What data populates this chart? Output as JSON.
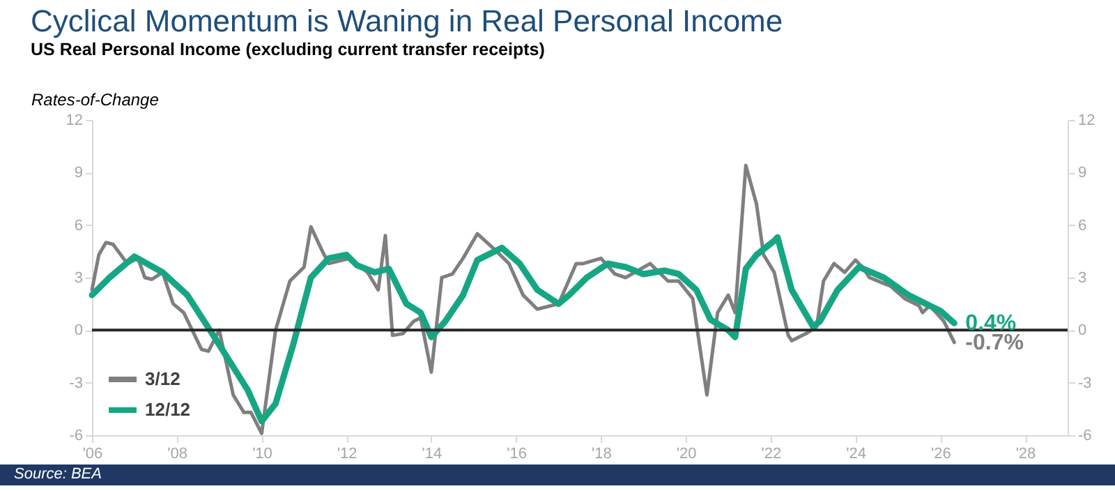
{
  "chart_data": {
    "type": "line",
    "title": "Cyclical Momentum is Waning in Real Personal Income",
    "subtitle": "US Real Personal Income (excluding current transfer receipts)",
    "ylabel": "Rates-of-Change",
    "xlim": [
      "2006-01",
      "2029-01"
    ],
    "xticks": [
      {
        "value": "2006",
        "label": "'06"
      },
      {
        "value": "2008",
        "label": "'08"
      },
      {
        "value": "2010",
        "label": "'10"
      },
      {
        "value": "2012",
        "label": "'12"
      },
      {
        "value": "2014",
        "label": "'14"
      },
      {
        "value": "2016",
        "label": "'16"
      },
      {
        "value": "2018",
        "label": "'18"
      },
      {
        "value": "2020",
        "label": "'20"
      },
      {
        "value": "2022",
        "label": "'22"
      },
      {
        "value": "2024",
        "label": "'24"
      },
      {
        "value": "2026",
        "label": "'26"
      },
      {
        "value": "2028",
        "label": "'28"
      }
    ],
    "ylim": [
      -6,
      12
    ],
    "yticks": [
      -6,
      -3,
      0,
      3,
      6,
      9,
      12
    ],
    "y2lim": [
      -6,
      12
    ],
    "y2ticks": [
      -6,
      -3,
      0,
      3,
      6,
      9,
      12
    ],
    "grid": false,
    "legend": "bottom left",
    "ref_lines": [
      {
        "axis": "y",
        "value": 0,
        "color": "#262626"
      }
    ],
    "annotations": [
      "Source: BEA",
      {
        "text": "0.4%",
        "x": "2026-05",
        "y": 0.4
      },
      {
        "text": "-0.7%",
        "x": "2026-05",
        "y": -0.7
      }
    ],
    "series": [
      {
        "name": "3/12",
        "color": "#7f7f7f",
        "x": [
          "2006-01",
          "2006-03",
          "2006-05",
          "2006-07",
          "2006-11",
          "2007-02",
          "2007-04",
          "2007-06",
          "2007-09",
          "2007-12",
          "2008-03",
          "2008-08",
          "2008-10",
          "2009-01",
          "2009-05",
          "2009-08",
          "2009-10",
          "2010-01",
          "2010-05",
          "2010-09",
          "2011-01",
          "2011-03",
          "2011-06",
          "2011-08",
          "2012-02",
          "2012-07",
          "2012-10",
          "2012-12",
          "2013-02",
          "2013-05",
          "2013-08",
          "2013-10",
          "2014-01",
          "2014-04",
          "2014-07",
          "2014-10",
          "2015-02",
          "2015-07",
          "2015-11",
          "2016-03",
          "2016-07",
          "2017-01",
          "2017-06",
          "2017-08",
          "2018-01",
          "2018-05",
          "2018-08",
          "2019-03",
          "2019-08",
          "2019-11",
          "2020-03",
          "2020-07",
          "2020-10",
          "2021-01",
          "2021-03",
          "2021-06",
          "2021-09",
          "2021-11",
          "2022-02",
          "2022-06",
          "2022-07",
          "2022-11",
          "2023-02",
          "2023-04",
          "2023-07",
          "2023-10",
          "2024-01",
          "2024-03",
          "2024-05",
          "2024-11",
          "2025-03",
          "2025-07",
          "2025-08",
          "2025-10",
          "2026-02",
          "2026-05"
        ],
        "values": [
          2.3,
          4.3,
          5.0,
          4.9,
          3.8,
          4.1,
          3.0,
          2.9,
          3.3,
          1.5,
          1.0,
          -1.1,
          -1.2,
          0,
          -3.7,
          -4.7,
          -4.7,
          -5.9,
          0,
          2.8,
          3.6,
          5.9,
          4.6,
          3.8,
          4.1,
          3.3,
          2.3,
          5.4,
          -0.3,
          -0.2,
          0.5,
          0.7,
          -2.4,
          3.0,
          3.2,
          4.1,
          5.5,
          4.6,
          3.8,
          2.0,
          1.2,
          1.5,
          3.8,
          3.8,
          4.1,
          3.2,
          3.0,
          3.8,
          2.8,
          2.8,
          1.8,
          -3.7,
          1.0,
          2.0,
          1.0,
          9.4,
          7.2,
          4.3,
          3.3,
          -0.3,
          -0.6,
          -0.2,
          0.2,
          2.8,
          3.8,
          3.3,
          4.0,
          3.6,
          3.0,
          2.5,
          1.8,
          1.4,
          1.0,
          1.4,
          0.5,
          -0.7
        ]
      },
      {
        "name": "12/12",
        "color": "#17a683",
        "x": [
          "2006-01",
          "2006-06",
          "2007-01",
          "2007-09",
          "2008-04",
          "2008-11",
          "2009-05",
          "2009-09",
          "2010-01",
          "2010-05",
          "2010-10",
          "2011-03",
          "2011-08",
          "2012-01",
          "2012-04",
          "2012-09",
          "2013-01",
          "2013-06",
          "2013-10",
          "2014-01",
          "2014-05",
          "2014-10",
          "2015-02",
          "2015-09",
          "2016-02",
          "2016-07",
          "2017-01",
          "2017-04",
          "2017-09",
          "2018-03",
          "2018-08",
          "2019-01",
          "2019-07",
          "2019-11",
          "2020-04",
          "2020-08",
          "2021-01",
          "2021-03",
          "2021-06",
          "2021-09",
          "2022-02",
          "2022-03",
          "2022-07",
          "2023-01",
          "2023-03",
          "2023-08",
          "2024-02",
          "2024-09",
          "2025-04",
          "2026-01",
          "2026-05"
        ],
        "values": [
          2.0,
          3.0,
          4.2,
          3.3,
          2.0,
          -0.2,
          -2.1,
          -3.4,
          -5.2,
          -4.2,
          -0.8,
          3.0,
          4.1,
          4.3,
          3.7,
          3.3,
          3.5,
          1.5,
          1.0,
          -0.4,
          0.5,
          2.0,
          4.0,
          4.7,
          3.8,
          2.3,
          1.5,
          2.0,
          3.0,
          3.8,
          3.6,
          3.2,
          3.4,
          3.2,
          2.3,
          0.6,
          0.0,
          -0.4,
          3.5,
          4.3,
          5.1,
          5.3,
          2.3,
          0.2,
          0.5,
          2.3,
          3.6,
          3.0,
          2.0,
          1.1,
          0.4
        ]
      }
    ]
  }
}
